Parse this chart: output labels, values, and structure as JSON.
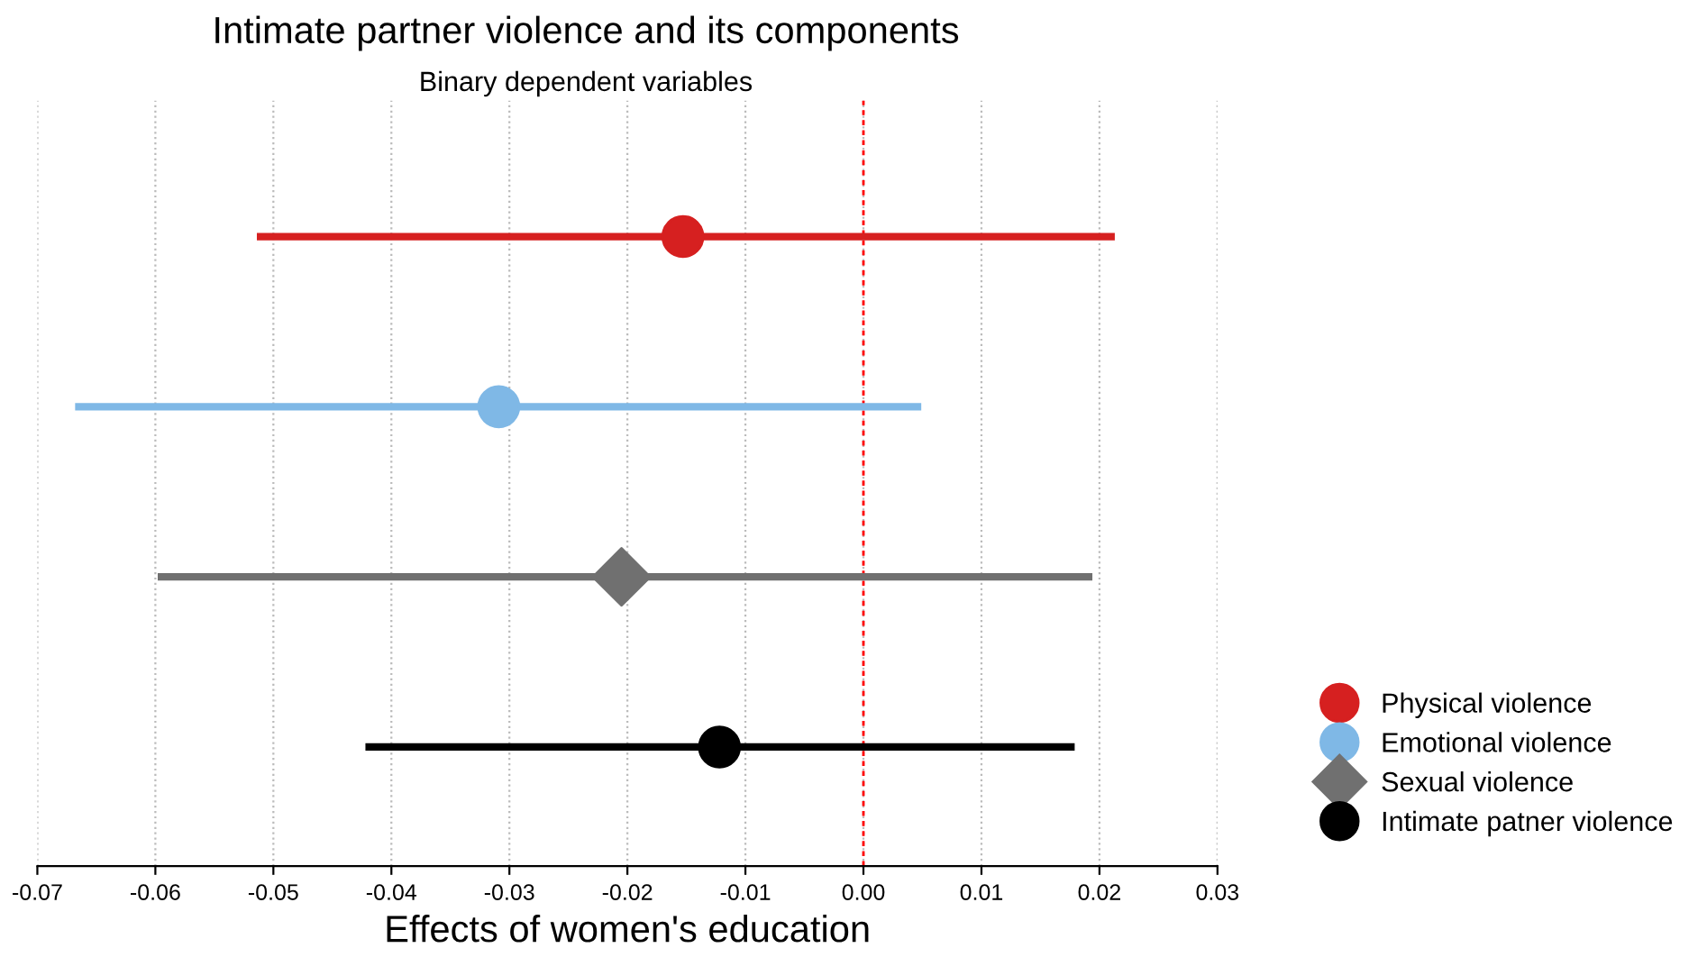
{
  "chart_data": {
    "type": "scatter",
    "orientation": "horizontal",
    "title": "Intimate partner violence and its components",
    "subtitle": "Binary dependent variables",
    "xlabel": "Effects of women's education",
    "categories": [
      null,
      null,
      null,
      null
    ],
    "series": [
      {
        "name": "Physical violence",
        "color": "#d62020",
        "marker": "circle",
        "values": [
          -0.0153,
          null,
          null,
          null
        ],
        "errors": [
          [
            -0.0514,
            0.0213
          ],
          null,
          null,
          null
        ]
      },
      {
        "name": "Emotional violence",
        "color": "#7fb8e6",
        "marker": "circle",
        "values": [
          null,
          -0.0309,
          null,
          null
        ],
        "errors": [
          null,
          [
            -0.0668,
            0.0049
          ],
          null,
          null
        ]
      },
      {
        "name": "Sexual violence",
        "color": "#707070",
        "marker": "diamond",
        "values": [
          null,
          null,
          -0.0205,
          null
        ],
        "errors": [
          null,
          null,
          [
            -0.0598,
            0.0194
          ],
          null
        ]
      },
      {
        "name": "Intimate patner violence",
        "color": "#000000",
        "marker": "circle",
        "values": [
          null,
          null,
          null,
          -0.0122
        ],
        "errors": [
          null,
          null,
          null,
          [
            -0.0422,
            0.0179
          ]
        ]
      }
    ],
    "xlim": [
      -0.07,
      0.03
    ],
    "xticks": [
      {
        "value": -0.07,
        "label": "-0.07"
      },
      {
        "value": -0.06,
        "label": "-0.06"
      },
      {
        "value": -0.05,
        "label": "-0.05"
      },
      {
        "value": -0.04,
        "label": "-0.04"
      },
      {
        "value": -0.03,
        "label": "-0.03"
      },
      {
        "value": -0.02,
        "label": "-0.02"
      },
      {
        "value": -0.01,
        "label": "-0.01"
      },
      {
        "value": 0,
        "label": "0.00"
      },
      {
        "value": 0.01,
        "label": "0.01"
      },
      {
        "value": 0.02,
        "label": "0.02"
      },
      {
        "value": 0.03,
        "label": "0.03"
      }
    ],
    "ref_lines": [
      {
        "axis": "x",
        "value": 0,
        "color": "#ff0000",
        "line_style": "dashed"
      }
    ],
    "grid": "x",
    "legend": "bottom right",
    "tick_labels": "x"
  }
}
